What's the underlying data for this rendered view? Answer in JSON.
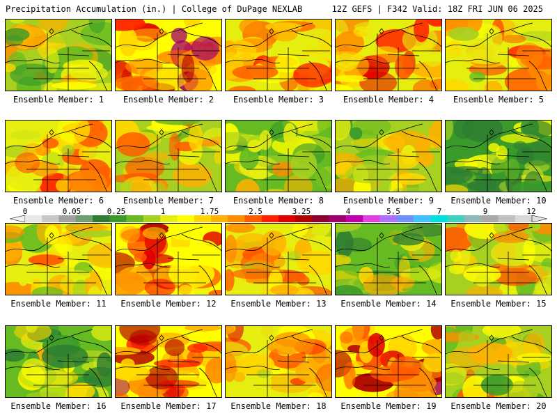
{
  "header": {
    "left": "Precipitation Accumulation (in.) | College of DuPage NEXLAB",
    "right": "12Z GEFS | F342 Valid: 18Z FRI JUN 06 2025"
  },
  "panels": [
    {
      "label": "Ensemble Member: 1",
      "intensity": 0.35
    },
    {
      "label": "Ensemble Member: 2",
      "intensity": 0.8
    },
    {
      "label": "Ensemble Member: 3",
      "intensity": 0.6
    },
    {
      "label": "Ensemble Member: 4",
      "intensity": 0.65
    },
    {
      "label": "Ensemble Member: 5",
      "intensity": 0.55
    },
    {
      "label": "Ensemble Member: 6",
      "intensity": 0.55
    },
    {
      "label": "Ensemble Member: 7",
      "intensity": 0.45
    },
    {
      "label": "Ensemble Member: 8",
      "intensity": 0.3
    },
    {
      "label": "Ensemble Member: 9",
      "intensity": 0.35
    },
    {
      "label": "Ensemble Member: 10",
      "intensity": 0.15
    },
    {
      "label": "Ensemble Member: 11",
      "intensity": 0.5
    },
    {
      "label": "Ensemble Member: 12",
      "intensity": 0.7
    },
    {
      "label": "Ensemble Member: 13",
      "intensity": 0.55
    },
    {
      "label": "Ensemble Member: 14",
      "intensity": 0.25
    },
    {
      "label": "Ensemble Member: 15",
      "intensity": 0.45
    },
    {
      "label": "Ensemble Member: 16",
      "intensity": 0.25
    },
    {
      "label": "Ensemble Member: 17",
      "intensity": 0.75
    },
    {
      "label": "Ensemble Member: 18",
      "intensity": 0.6
    },
    {
      "label": "Ensemble Member: 19",
      "intensity": 0.8
    },
    {
      "label": "Ensemble Member: 20",
      "intensity": 0.4
    }
  ],
  "colorbar": {
    "ticks": [
      "0",
      "0.05",
      "0.25",
      "1",
      "1.75",
      "2.5",
      "3.25",
      "4",
      "5.5",
      "7",
      "9",
      "12"
    ],
    "colors": [
      "#e8e8e8",
      "#c8c8c8",
      "#a0a0a0",
      "#6e9e6e",
      "#2e7d32",
      "#3a9a2a",
      "#66bb22",
      "#a8d020",
      "#e6ee10",
      "#ffff00",
      "#ffd700",
      "#ffb000",
      "#ff8c00",
      "#ff5a00",
      "#ff2000",
      "#e00000",
      "#b00000",
      "#8b0030",
      "#a0006e",
      "#c000b0",
      "#e040e0",
      "#b070ff",
      "#7090ff",
      "#40c0ff",
      "#00e0e0",
      "#40d0c0",
      "#90b8b8",
      "#a8a8a8",
      "#c0c0c0",
      "#d8d8d8"
    ]
  }
}
